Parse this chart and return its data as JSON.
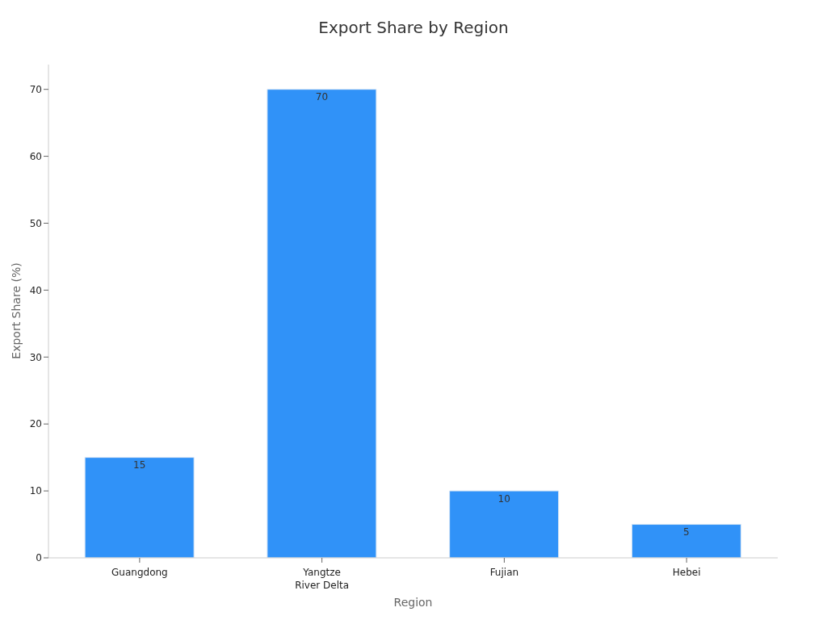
{
  "chart_data": {
    "type": "bar",
    "title": "Export Share by Region",
    "xlabel": "Region",
    "ylabel": "Export Share (%)",
    "categories": [
      "Guangdong",
      "Yangtze River Delta",
      "Fujian",
      "Hebei"
    ],
    "values": [
      15,
      70,
      10,
      5
    ],
    "color": "#3092f8",
    "ylim": [
      0,
      73.7
    ],
    "yticks": [
      0,
      10,
      20,
      30,
      40,
      50,
      60,
      70
    ],
    "grid": false,
    "legend": false,
    "data_labels": true
  }
}
